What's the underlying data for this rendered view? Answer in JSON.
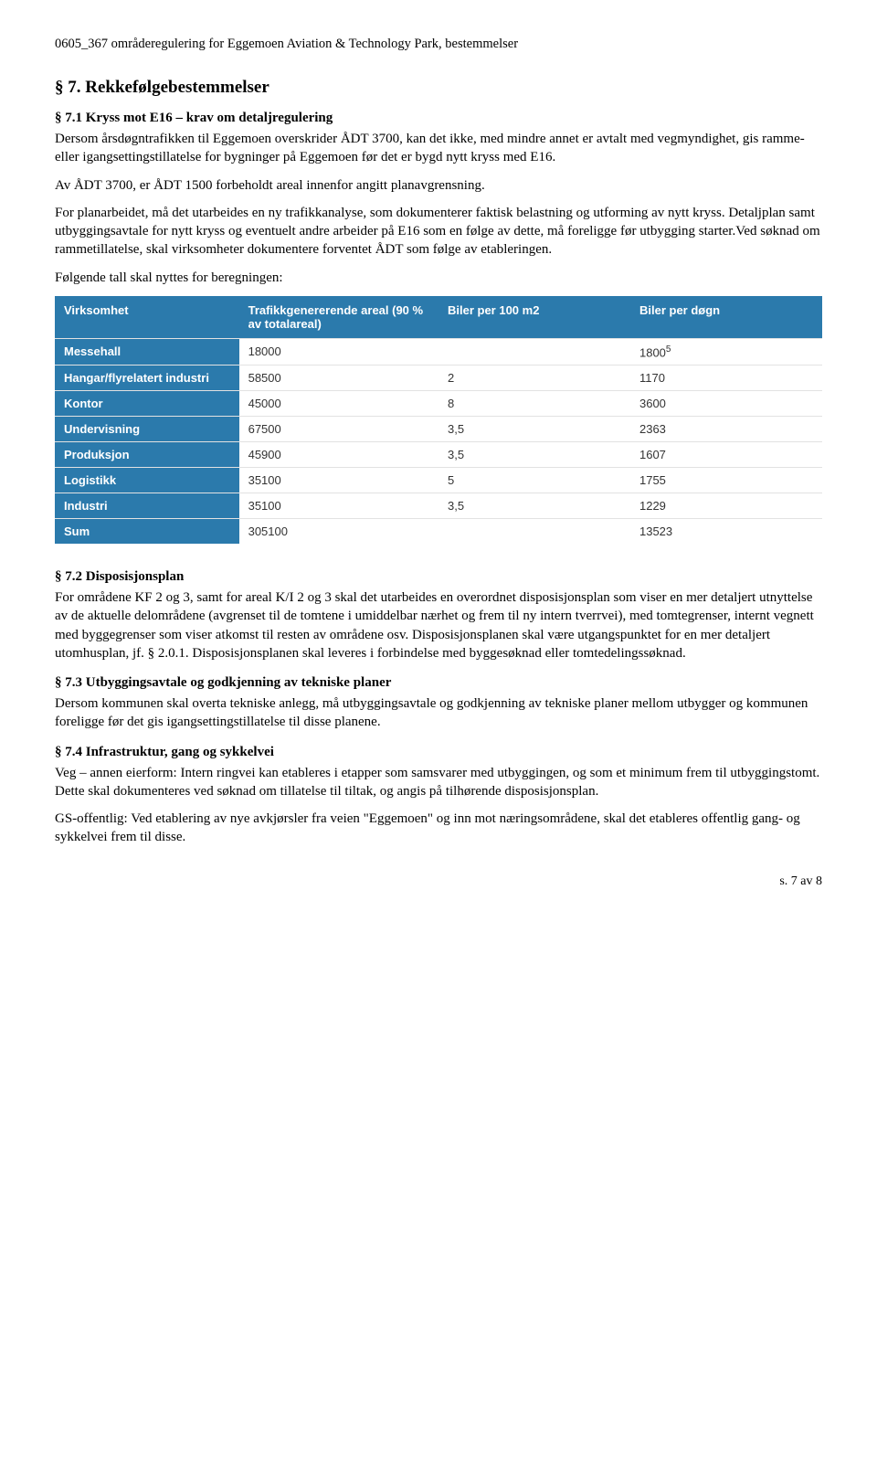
{
  "doc": {
    "header": "0605_367 områderegulering for Eggemoen Aviation & Technology Park, bestemmelser",
    "section7_title": "§ 7. Rekkefølgebestemmelser",
    "s71_title": "§ 7.1 Kryss mot E16 – krav om detaljregulering",
    "s71_p1": "Dersom årsdøgntrafikken til Eggemoen overskrider ÅDT 3700, kan det ikke, med mindre annet er avtalt med vegmyndighet, gis ramme- eller igangsettingstillatelse for bygninger på Eggemoen før det er bygd nytt kryss med E16.",
    "s71_p2": "Av ÅDT 3700, er ÅDT 1500 forbeholdt areal innenfor angitt planavgrensning.",
    "s71_p3": "For planarbeidet, må det utarbeides en ny trafikkanalyse, som dokumenterer faktisk belastning og utforming av nytt kryss. Detaljplan samt utbyggingsavtale for nytt kryss og eventuelt andre arbeider på E16 som en følge av dette, må foreligge før utbygging starter.Ved søknad om rammetillatelse, skal virksomheter dokumentere forventet ÅDT som følge av etableringen.",
    "s71_p4": "Følgende tall skal nyttes for beregningen:",
    "s72_title": "§ 7.2 Disposisjonsplan",
    "s72_p1": "For områdene KF 2 og 3, samt for areal K/I 2 og 3 skal det utarbeides en overordnet disposisjonsplan som viser en mer detaljert utnyttelse av de aktuelle delområdene (avgrenset til de tomtene i umiddelbar nærhet og frem til ny intern tverrvei), med tomtegrenser, internt vegnett med byggegrenser som viser atkomst til resten av områdene osv. Disposisjonsplanen skal være utgangspunktet for en mer detaljert utomhusplan, jf. § 2.0.1. Disposisjonsplanen skal leveres i forbindelse med byggesøknad eller tomtedelingssøknad.",
    "s73_title": "§ 7.3 Utbyggingsavtale og godkjenning av tekniske planer",
    "s73_p1": "Dersom kommunen skal overta tekniske anlegg, må utbyggingsavtale og godkjenning av tekniske planer mellom utbygger og kommunen foreligge før det gis igangsettingstillatelse til disse planene.",
    "s74_title": "§ 7.4 Infrastruktur, gang og sykkelvei",
    "s74_p1": "Veg – annen eierform: Intern ringvei kan etableres i etapper som samsvarer med utbyggingen, og som et minimum frem til utbyggingstomt. Dette skal dokumenteres ved søknad om tillatelse til tiltak, og angis på tilhørende disposisjonsplan.",
    "s74_p2": "GS-offentlig: Ved etablering av nye avkjørsler fra veien \"Eggemoen\" og inn mot næringsområdene, skal det etableres offentlig gang- og sykkelvei frem til disse.",
    "footer": "s. 7 av 8"
  },
  "table": {
    "header_bg": "#2b7aac",
    "rowhead_bg": "#2b7aac",
    "headers": [
      "Virksomhet",
      "Trafikkgenererende areal (90 % av totalareal)",
      "Biler per 100 m2",
      "Biler per døgn"
    ],
    "col_widths": [
      "24%",
      "26%",
      "25%",
      "25%"
    ],
    "rows": [
      {
        "label": "Messehall",
        "areal": "18000",
        "per100": "",
        "perdag": "1800",
        "sup": "5"
      },
      {
        "label": "Hangar/flyrelatert industri",
        "areal": "58500",
        "per100": "2",
        "perdag": "1170",
        "sup": ""
      },
      {
        "label": "Kontor",
        "areal": "45000",
        "per100": "8",
        "perdag": "3600",
        "sup": ""
      },
      {
        "label": "Undervisning",
        "areal": "67500",
        "per100": "3,5",
        "perdag": "2363",
        "sup": ""
      },
      {
        "label": "Produksjon",
        "areal": "45900",
        "per100": "3,5",
        "perdag": "1607",
        "sup": ""
      },
      {
        "label": "Logistikk",
        "areal": "35100",
        "per100": "5",
        "perdag": "1755",
        "sup": ""
      },
      {
        "label": "Industri",
        "areal": "35100",
        "per100": "3,5",
        "perdag": "1229",
        "sup": ""
      },
      {
        "label": "Sum",
        "areal": "305100",
        "per100": "",
        "perdag": "13523",
        "sup": ""
      }
    ]
  }
}
